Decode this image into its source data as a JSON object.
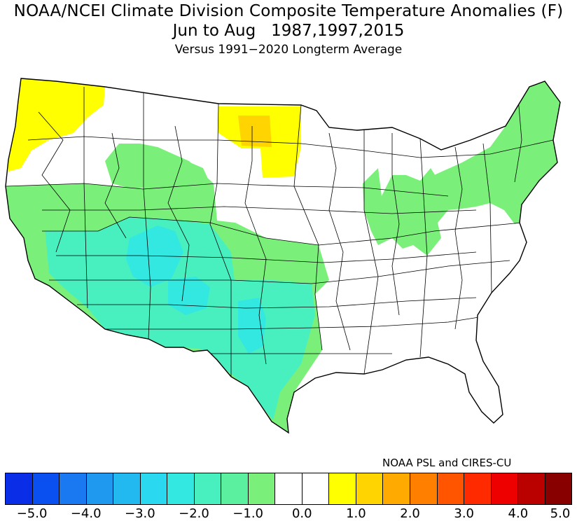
{
  "title": {
    "line1": "NOAA/NCEI Climate Division Composite Temperature Anomalies (F)",
    "line2": "Jun to Aug   1987,1997,2015",
    "line3": "Versus 1991-2020 Longterm Average"
  },
  "credit": "NOAA PSL and CIRES-CU",
  "legend": {
    "colors": [
      "#0a2ee8",
      "#0a50f0",
      "#1a78f0",
      "#1f98f0",
      "#22b8f0",
      "#2ad8f0",
      "#33e8e0",
      "#48f0c0",
      "#5af0a0",
      "#7af07a",
      "#ffffff",
      "#ffffff",
      "#ffff00",
      "#ffd400",
      "#ffaa00",
      "#ff8000",
      "#ff5500",
      "#ff2a00",
      "#ee0000",
      "#bb0000",
      "#880000"
    ],
    "labels": [
      "-5.0",
      "-4.0",
      "-3.0",
      "-2.0",
      "-1.0",
      "0.0",
      "1.0",
      "2.0",
      "3.0",
      "4.0",
      "5.0"
    ]
  },
  "map": {
    "regions": [
      {
        "name": "pacific-northwest-coast",
        "anomaly_class": "positive-1to2",
        "color": "#ffff00"
      },
      {
        "name": "north-dakota-west",
        "anomaly_class": "positive-1to2",
        "color": "#ffff00"
      },
      {
        "name": "north-dakota-central",
        "anomaly_class": "positive-1to2",
        "color": "#ffd400"
      },
      {
        "name": "great-basin-central",
        "anomaly_class": "negative-2to3",
        "color": "#33e8e0"
      },
      {
        "name": "west-texas-central",
        "anomaly_class": "negative-2to3",
        "color": "#33e8e0"
      },
      {
        "name": "southwest",
        "anomaly_class": "negative-1to2",
        "color": "#48f0c0"
      },
      {
        "name": "intermountain-west",
        "anomaly_class": "negative-0to1",
        "color": "#7af07a"
      },
      {
        "name": "midwest-ohio-valley",
        "anomaly_class": "negative-0to1",
        "color": "#7af07a"
      },
      {
        "name": "northeast",
        "anomaly_class": "negative-0to1",
        "color": "#7af07a"
      },
      {
        "name": "southeast-and-plains",
        "anomaly_class": "neutral",
        "color": "#ffffff"
      }
    ]
  }
}
